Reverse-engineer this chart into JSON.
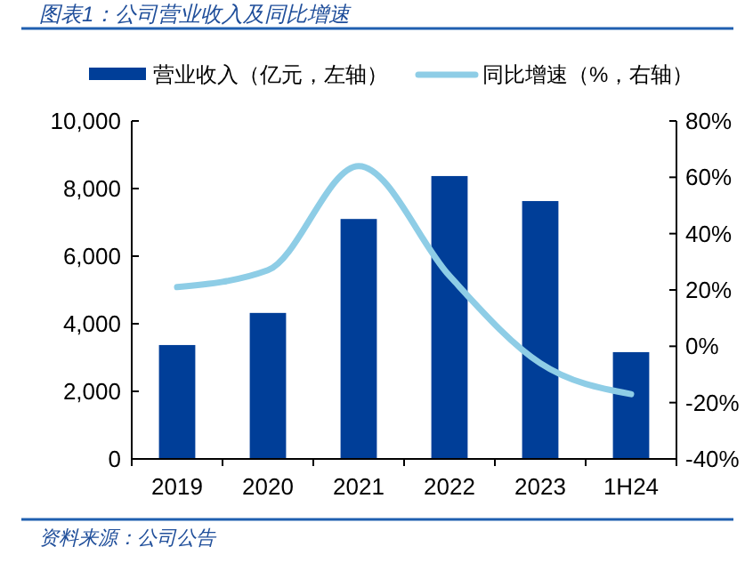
{
  "chart_data": {
    "type": "bar",
    "title": "图表1：公司营业收入及同比增速",
    "categories": [
      "2019",
      "2020",
      "2021",
      "2022",
      "2023",
      "1H24"
    ],
    "series": [
      {
        "name": "营业收入（亿元，左轴）",
        "color": "#003e98",
        "values": [
          3370,
          4320,
          7100,
          8370,
          7630,
          3160
        ]
      },
      {
        "name": "同比增速（%，右轴）",
        "type": "line",
        "axis": "y2",
        "color": "#8ecde6",
        "values": [
          21,
          27,
          64,
          25,
          -6,
          -17
        ]
      }
    ],
    "ylim": [
      0,
      10000
    ],
    "yticks": [
      {
        "value": 0,
        "label": "0"
      },
      {
        "value": 2000,
        "label": "2,000"
      },
      {
        "value": 4000,
        "label": "4,000"
      },
      {
        "value": 6000,
        "label": "6,000"
      },
      {
        "value": 8000,
        "label": "8,000"
      },
      {
        "value": 10000,
        "label": "10,000"
      }
    ],
    "y2lim": [
      -40,
      80
    ],
    "y2ticks": [
      {
        "value": -40,
        "label": "-40%"
      },
      {
        "value": -20,
        "label": "-20%"
      },
      {
        "value": 0,
        "label": "0%"
      },
      {
        "value": 20,
        "label": "20%"
      },
      {
        "value": 40,
        "label": "40%"
      },
      {
        "value": 60,
        "label": "60%"
      },
      {
        "value": 80,
        "label": "80%"
      }
    ],
    "legend": "top",
    "grid": false,
    "annotations": [
      "资料来源：公司公告"
    ]
  }
}
